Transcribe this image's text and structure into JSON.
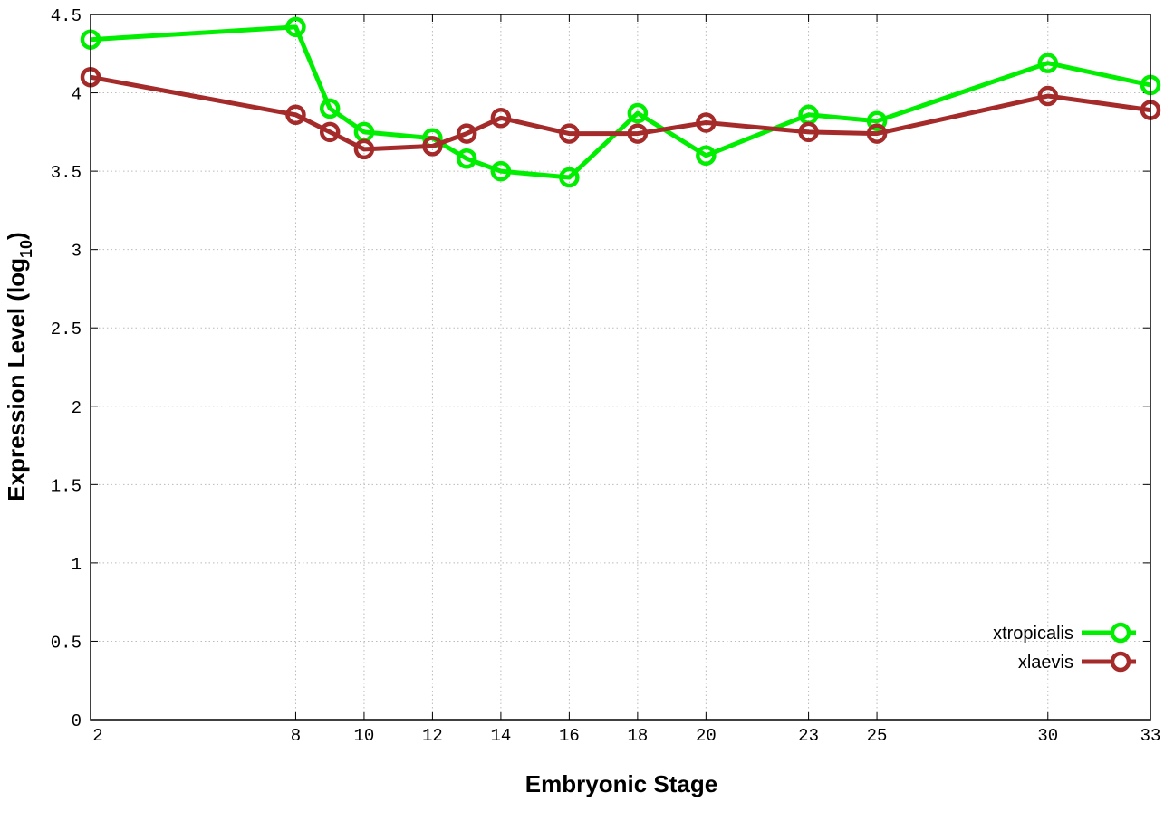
{
  "chart_data": {
    "type": "line",
    "title": "",
    "xlabel": "Embryonic Stage",
    "ylabel_main": "Expression Level (log",
    "ylabel_sub": "10",
    "ylabel_close": ")",
    "xlim": [
      2,
      33
    ],
    "ylim": [
      0,
      4.5
    ],
    "x_ticks": [
      2,
      8,
      10,
      12,
      14,
      16,
      18,
      20,
      23,
      25,
      30,
      33
    ],
    "y_ticks": [
      0,
      0.5,
      1,
      1.5,
      2,
      2.5,
      3,
      3.5,
      4,
      4.5
    ],
    "y_tick_labels": [
      "0",
      "0.5",
      "1",
      "1.5",
      "2",
      "2.5",
      "3",
      "3.5",
      "4",
      "4.5"
    ],
    "grid": true,
    "legend_position": "bottom-right",
    "x": [
      2,
      8,
      9,
      10,
      12,
      13,
      14,
      16,
      18,
      20,
      23,
      25,
      30,
      33
    ],
    "series": [
      {
        "name": "xtropicalis",
        "color": "#00ee00",
        "values": [
          4.34,
          4.42,
          3.9,
          3.75,
          3.71,
          3.58,
          3.5,
          3.46,
          3.87,
          3.6,
          3.86,
          3.82,
          4.19,
          4.05
        ]
      },
      {
        "name": "xlaevis",
        "color": "#a52a2a",
        "values": [
          4.1,
          3.86,
          3.75,
          3.64,
          3.66,
          3.74,
          3.84,
          3.74,
          3.74,
          3.81,
          3.75,
          3.74,
          3.98,
          3.89
        ]
      }
    ]
  }
}
